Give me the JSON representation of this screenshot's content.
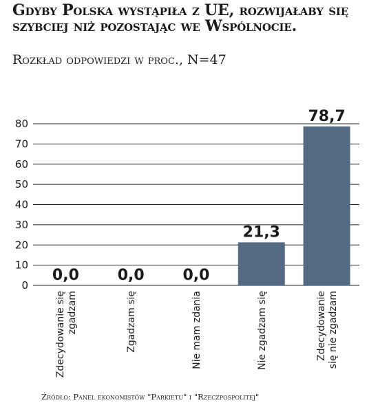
{
  "header": {
    "title": "Gdyby Polska wystąpiła z UE, rozwijałaby się szybciej niż pozostając we Wspólnocie.",
    "subtitle": "Rozkład odpowiedzi w proc., N=47"
  },
  "footer": {
    "source": "Źródło: Panel ekonomistów \"Parkietu\" i \"Rzeczpospolitej\""
  },
  "colors": {
    "bar": "#546a82",
    "grid": "#222222",
    "text": "#1a1a1a"
  },
  "chart_data": {
    "type": "bar",
    "title": "Gdyby Polska wystąpiła z UE, rozwijałaby się szybciej niż pozostając we Wspólnocie.",
    "subtitle": "Rozkład odpowiedzi w proc., N=47",
    "categories": [
      "Zdecydowanie się zgadzam",
      "Zgadzam się",
      "Nie mam zdania",
      "Nie zgadzam się",
      "Zdecydowanie się nie zgadzam"
    ],
    "category_lines": [
      [
        "Zdecydowanie się",
        "zgadzam"
      ],
      [
        "Zgadzam się"
      ],
      [
        "Nie mam zdania"
      ],
      [
        "Nie zgadzam się"
      ],
      [
        "Zdecydowanie",
        "się nie zgadzam"
      ]
    ],
    "values": [
      0.0,
      0.0,
      0.0,
      21.3,
      78.7
    ],
    "value_labels": [
      "0,0",
      "0,0",
      "0,0",
      "21,3",
      "78,7"
    ],
    "ylim": [
      0,
      80
    ],
    "yticks": [
      0,
      10,
      20,
      30,
      40,
      50,
      60,
      70,
      80
    ],
    "grid": true,
    "legend": "none"
  }
}
